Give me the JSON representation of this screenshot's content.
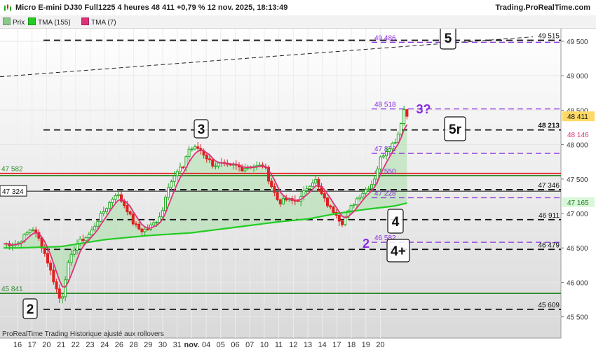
{
  "header": {
    "title": "Micro E-mini DJ30 Full1225 4 heures 48 411 +0,79 % 12 nov. 2025, 18:13:49",
    "source": "Trading.ProRealTime.com",
    "footer": "ProRealTime Trading  Historique ajusté aux rollovers"
  },
  "legend": [
    {
      "label": "Prix",
      "color": "#8bc98b"
    },
    {
      "label": "TMA (155)",
      "color": "#22cc22"
    },
    {
      "label": "TMA (7)",
      "color": "#e0307a"
    }
  ],
  "chart_data": {
    "type": "candlestick",
    "x_ticks": [
      "16",
      "17",
      "20",
      "21",
      "22",
      "23",
      "24",
      "26",
      "28",
      "29",
      "30",
      "31",
      "nov.",
      "04",
      "05",
      "06",
      "07",
      "10",
      "11",
      "12",
      "13",
      "14",
      "17",
      "18",
      "19",
      "20"
    ],
    "y_ticks": [
      "45 500",
      "46 000",
      "46 500",
      "47 000",
      "47 500",
      "48 000",
      "48 500",
      "49 000",
      "49 500"
    ],
    "ylim": [
      45420,
      49900
    ],
    "last_price": "48 411",
    "tma7_last": "48 146",
    "tma155_last": "47 165",
    "price_path": [
      [
        0.0,
        46560
      ],
      [
        1.0,
        46800
      ],
      [
        1.5,
        46620
      ],
      [
        2.0,
        46350
      ],
      [
        2.5,
        46020
      ],
      [
        3.0,
        45700
      ],
      [
        3.4,
        46200
      ],
      [
        4.0,
        46550
      ],
      [
        5.0,
        46700
      ],
      [
        5.5,
        46900
      ],
      [
        6.0,
        47050
      ],
      [
        6.8,
        47300
      ],
      [
        7.5,
        47080
      ],
      [
        8.0,
        46850
      ],
      [
        8.5,
        46750
      ],
      [
        9.0,
        46780
      ],
      [
        9.6,
        46900
      ],
      [
        10.0,
        47050
      ],
      [
        10.3,
        47380
      ],
      [
        10.7,
        47500
      ],
      [
        11.0,
        47600
      ],
      [
        11.5,
        47700
      ],
      [
        11.7,
        47930
      ],
      [
        12.0,
        47940
      ],
      [
        12.5,
        47950
      ],
      [
        13.0,
        47820
      ],
      [
        13.5,
        47700
      ],
      [
        14.0,
        47720
      ],
      [
        14.5,
        47680
      ],
      [
        15.0,
        47700
      ],
      [
        15.5,
        47650
      ],
      [
        16.0,
        47700
      ],
      [
        16.5,
        47680
      ],
      [
        17.0,
        47700
      ],
      [
        17.3,
        47500
      ],
      [
        17.7,
        47300
      ],
      [
        18.0,
        47160
      ],
      [
        18.5,
        47200
      ],
      [
        19.0,
        47180
      ],
      [
        19.5,
        47220
      ],
      [
        20.0,
        47400
      ],
      [
        20.5,
        47500
      ],
      [
        21.0,
        47250
      ],
      [
        21.5,
        47080
      ],
      [
        22.0,
        47000
      ],
      [
        22.3,
        46850
      ],
      [
        22.6,
        46950
      ],
      [
        23.0,
        47100
      ],
      [
        23.5,
        47250
      ],
      [
        24.0,
        47350
      ],
      [
        24.5,
        47450
      ],
      [
        25.0,
        47800
      ],
      [
        25.5,
        47950
      ],
      [
        26.0,
        48050
      ],
      [
        26.3,
        48200
      ],
      [
        26.6,
        48520
      ],
      [
        26.9,
        48411
      ]
    ],
    "tma155_path": [
      [
        0.0,
        46500
      ],
      [
        3.0,
        46520
      ],
      [
        6.0,
        46620
      ],
      [
        9.0,
        46680
      ],
      [
        12.0,
        46720
      ],
      [
        15.0,
        46800
      ],
      [
        18.0,
        46880
      ],
      [
        20.0,
        46920
      ],
      [
        22.0,
        47000
      ],
      [
        24.0,
        47060
      ],
      [
        26.0,
        47110
      ],
      [
        27.1,
        47165
      ]
    ],
    "horizontal_levels": [
      {
        "value": 49515,
        "label": "49 515",
        "style": "black-dashed"
      },
      {
        "value": 49486,
        "label": "49 486",
        "style": "purple-dashed"
      },
      {
        "value": 48518,
        "label": "48 518",
        "style": "purple-dashed"
      },
      {
        "value": 48213,
        "label": "48 213",
        "style": "black-dashed"
      },
      {
        "value": 47873,
        "label": "47 873",
        "style": "purple-dashed"
      },
      {
        "value": 47582,
        "label": "47 582",
        "style": "red-solid"
      },
      {
        "value": 47550,
        "label": "47 550",
        "style": "green-solid"
      },
      {
        "value": 47346,
        "label": "47 346",
        "style": "black-dashed"
      },
      {
        "value": 47324,
        "label": "47 324",
        "style": "black-solid"
      },
      {
        "value": 47228,
        "label": "47 228",
        "style": "purple-dashed"
      },
      {
        "value": 46911,
        "label": "46 911",
        "style": "black-dashed"
      },
      {
        "value": 46582,
        "label": "46 582",
        "style": "purple-dashed"
      },
      {
        "value": 46479,
        "label": "46 479",
        "style": "black-dashed"
      },
      {
        "value": 45841,
        "label": "45 841",
        "style": "green-solid"
      },
      {
        "value": 45609,
        "label": "45 609",
        "style": "black-dashed"
      }
    ],
    "wave_labels": [
      {
        "text": "2",
        "boxed": true
      },
      {
        "text": "3",
        "boxed": true
      },
      {
        "text": "4",
        "boxed": true
      },
      {
        "text": "4+",
        "boxed": true
      },
      {
        "text": "5",
        "boxed": true
      },
      {
        "text": "5r",
        "boxed": true
      },
      {
        "text": "2",
        "boxed": false,
        "color": "#8a2be2"
      },
      {
        "text": "3?",
        "boxed": false,
        "color": "#8a2be2"
      }
    ],
    "colors": {
      "up": "#22aa22",
      "down": "#e02020",
      "tma155": "#22cc22",
      "tma7": "#e0307a",
      "purple": "#8a2be2",
      "red_line": "#e02020",
      "green_line": "#2e8b2e",
      "trend_line": "#222222"
    }
  }
}
